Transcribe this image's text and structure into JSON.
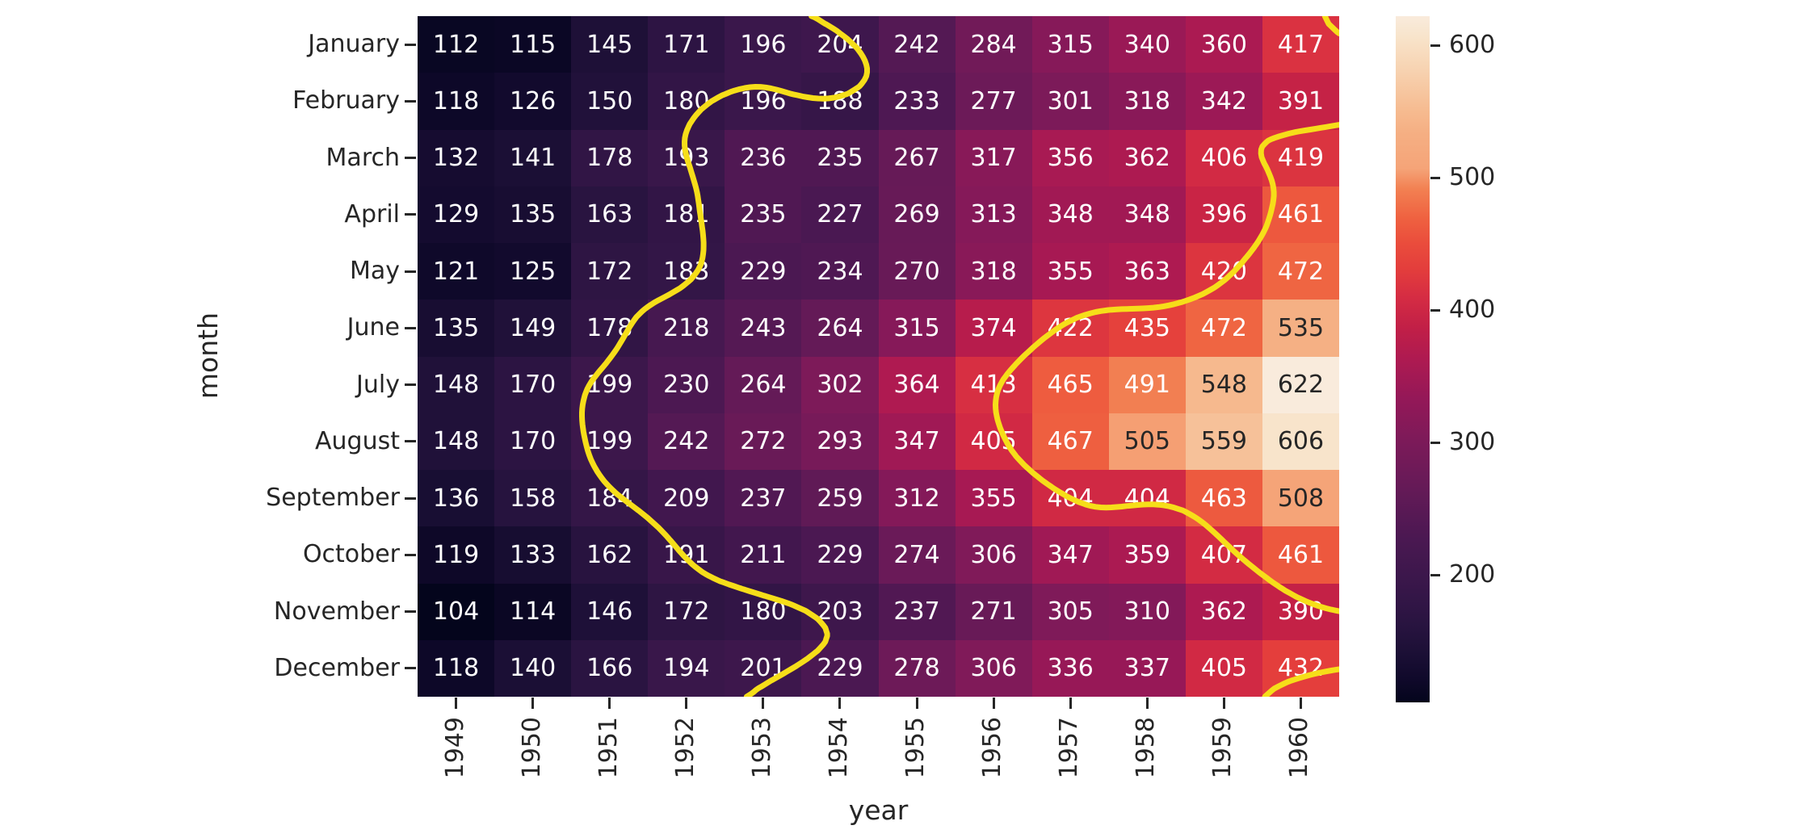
{
  "figure": {
    "background": "#ffffff",
    "tick_color": "#262626"
  },
  "chart_data": {
    "type": "heatmap",
    "title": "",
    "xlabel": "year",
    "ylabel": "month",
    "columns": [
      "1949",
      "1950",
      "1951",
      "1952",
      "1953",
      "1954",
      "1955",
      "1956",
      "1957",
      "1958",
      "1959",
      "1960"
    ],
    "rows": [
      "January",
      "February",
      "March",
      "April",
      "May",
      "June",
      "July",
      "August",
      "September",
      "October",
      "November",
      "December"
    ],
    "values": [
      [
        112,
        115,
        145,
        171,
        196,
        204,
        242,
        284,
        315,
        340,
        360,
        417
      ],
      [
        118,
        126,
        150,
        180,
        196,
        188,
        233,
        277,
        301,
        318,
        342,
        391
      ],
      [
        132,
        141,
        178,
        193,
        236,
        235,
        267,
        317,
        356,
        362,
        406,
        419
      ],
      [
        129,
        135,
        163,
        181,
        235,
        227,
        269,
        313,
        348,
        348,
        396,
        461
      ],
      [
        121,
        125,
        172,
        183,
        229,
        234,
        270,
        318,
        355,
        363,
        420,
        472
      ],
      [
        135,
        149,
        178,
        218,
        243,
        264,
        315,
        374,
        422,
        435,
        472,
        535
      ],
      [
        148,
        170,
        199,
        230,
        264,
        302,
        364,
        413,
        465,
        491,
        548,
        622
      ],
      [
        148,
        170,
        199,
        242,
        272,
        293,
        347,
        405,
        467,
        505,
        559,
        606
      ],
      [
        136,
        158,
        184,
        209,
        237,
        259,
        312,
        355,
        404,
        404,
        463,
        508
      ],
      [
        119,
        133,
        162,
        191,
        211,
        229,
        274,
        306,
        347,
        359,
        407,
        461
      ],
      [
        104,
        114,
        146,
        172,
        180,
        203,
        237,
        271,
        305,
        310,
        362,
        390
      ],
      [
        118,
        140,
        166,
        194,
        201,
        229,
        278,
        306,
        336,
        337,
        405,
        432
      ]
    ],
    "vmin": 104,
    "vmax": 622,
    "colorbar_ticks": [
      200,
      300,
      400,
      500,
      600
    ],
    "annotated": true,
    "grid_on": false,
    "legend_position": "colorbar-right",
    "colormap": {
      "name": "rocket",
      "stops": [
        [
          0.0,
          "#04051C"
        ],
        [
          0.035,
          "#10092B"
        ],
        [
          0.07,
          "#1B0F35"
        ],
        [
          0.105,
          "#26133E"
        ],
        [
          0.14,
          "#301545"
        ],
        [
          0.18,
          "#3B174B"
        ],
        [
          0.24,
          "#4B1852"
        ],
        [
          0.31,
          "#641A57"
        ],
        [
          0.38,
          "#7C1A59"
        ],
        [
          0.44,
          "#931858"
        ],
        [
          0.5,
          "#AE1A51"
        ],
        [
          0.545,
          "#C11F47"
        ],
        [
          0.59,
          "#D52C43"
        ],
        [
          0.63,
          "#E33D3C"
        ],
        [
          0.67,
          "#EA4D3C"
        ],
        [
          0.705,
          "#EF6140"
        ],
        [
          0.748,
          "#F28052"
        ],
        [
          0.778,
          "#F5A478"
        ],
        [
          0.83,
          "#F5AF83"
        ],
        [
          0.86,
          "#F6BA8F"
        ],
        [
          0.92,
          "#F7D2B0"
        ],
        [
          0.97,
          "#F8E4CB"
        ],
        [
          1.0,
          "#F9EBDC"
        ]
      ]
    },
    "contour": {
      "levels": [
        200,
        410
      ],
      "color": "#F6DE19"
    },
    "annotation_colors": {
      "on_dark_cell": "#FFFFFF",
      "on_light_cell": "#262626"
    }
  }
}
